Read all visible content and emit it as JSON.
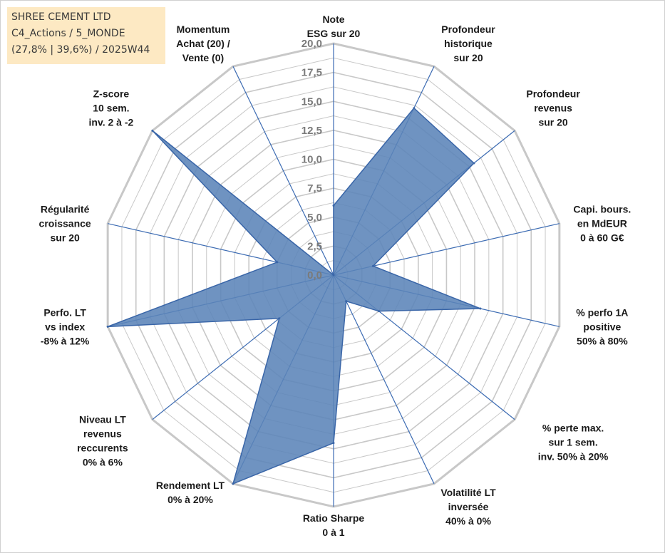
{
  "header": {
    "line1": "SHREE CEMENT LTD",
    "line2": "C4_Actions / 5_MONDE",
    "line3": "(27,8% | 39,6%) / 2025W44"
  },
  "colors": {
    "fill": "#5b84b8",
    "stroke": "#3a66a8",
    "grid": "#c8c8c8",
    "spoke": "#3d6cb3"
  },
  "chart_data": {
    "type": "radar",
    "rmin": 0,
    "rmax": 20,
    "ticks": [
      "0,0",
      "2,5",
      "5,0",
      "7,5",
      "10,0",
      "12,5",
      "15,0",
      "17,5",
      "20,0"
    ],
    "axes": [
      {
        "label": [
          "Note",
          "ESG sur 20"
        ],
        "value": 6
      },
      {
        "label": [
          "Profondeur",
          "historique",
          "sur 20"
        ],
        "value": 16
      },
      {
        "label": [
          "Profondeur",
          "revenus",
          "sur 20"
        ],
        "value": 15.5
      },
      {
        "label": [
          "Capi. bours.",
          "en MdEUR",
          "0 à 60 G€"
        ],
        "value": 3.5
      },
      {
        "label": [
          "% perfo 1A",
          "positive",
          "50% à 80%"
        ],
        "value": 13
      },
      {
        "label": [
          "% perte max.",
          "sur 1 sem.",
          "inv. 50% à 20%"
        ],
        "value": 5
      },
      {
        "label": [
          "Volatilité LT",
          "inversée",
          "40% à 0%"
        ],
        "value": 2.5
      },
      {
        "label": [
          "Ratio Sharpe",
          "0 à 1"
        ],
        "value": 14.5
      },
      {
        "label": [
          "Rendement LT",
          "0% à 20%"
        ],
        "value": 20
      },
      {
        "label": [
          "Niveau LT",
          "revenus",
          "reccurents",
          "0% à 6%"
        ],
        "value": 6
      },
      {
        "label": [
          "Perfo. LT",
          "vs index",
          "-8% à 12%"
        ],
        "value": 20
      },
      {
        "label": [
          "Régularité",
          "croissance",
          "sur 20"
        ],
        "value": 5
      },
      {
        "label": [
          "Z-score",
          "10 sem.",
          "inv. 2 à -2"
        ],
        "value": 20
      },
      {
        "label": [
          "Momentum",
          "Achat (20) /",
          "Vente (0)"
        ],
        "value": 0
      }
    ]
  }
}
